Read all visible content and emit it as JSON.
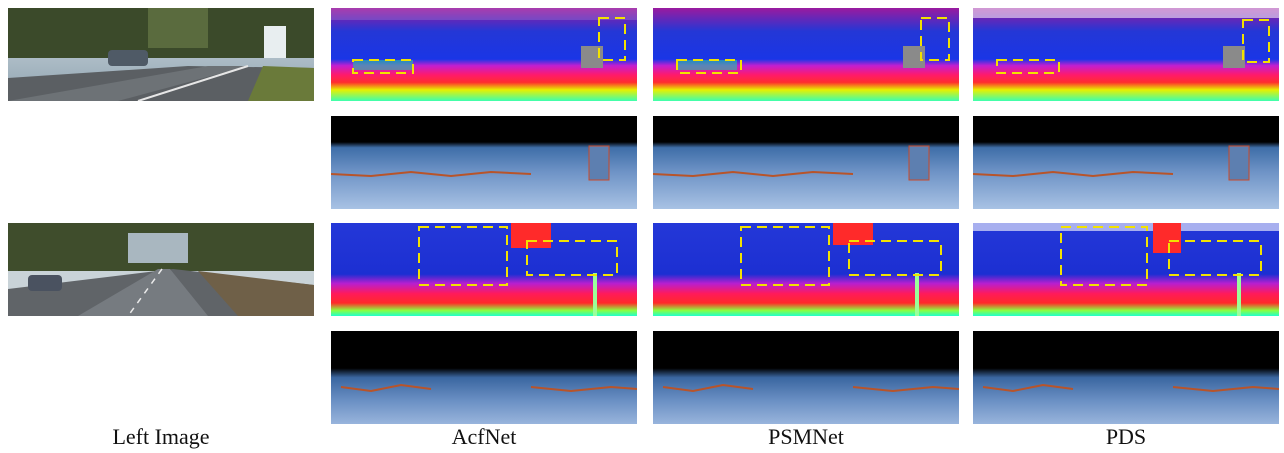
{
  "columns": [
    {
      "label": "Left Image"
    },
    {
      "label": "AcfNet"
    },
    {
      "label": "PSMNet"
    },
    {
      "label": "PDS"
    }
  ],
  "rows": [
    {
      "scene": "road-with-sign",
      "panels": [
        "photo",
        "disparity",
        "disparity",
        "disparity"
      ],
      "error_maps": [
        "error",
        "error",
        "error"
      ]
    },
    {
      "scene": "street-with-cars",
      "panels": [
        "photo",
        "disparity",
        "disparity",
        "disparity"
      ],
      "error_maps": [
        "error",
        "error",
        "error"
      ]
    }
  ],
  "colors": {
    "highlight_box": "#f2e200",
    "background": "#ffffff",
    "error_bg": "#000000"
  }
}
